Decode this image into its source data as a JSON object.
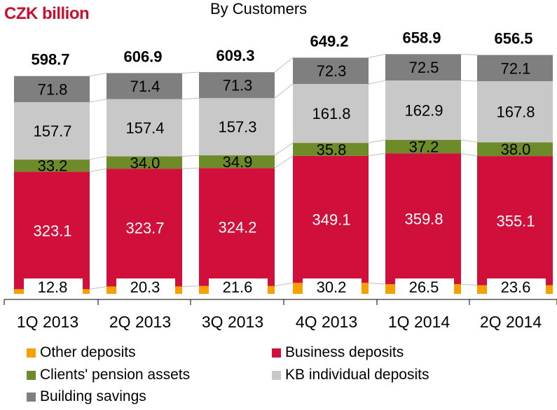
{
  "unit_label": "CZK billion",
  "title": "By Customers",
  "colors": {
    "unit_label": "#c8102e",
    "other": "#f5a000",
    "business": "#d0103a",
    "pension": "#6e8b2a",
    "kb_individual": "#c8c8c8",
    "building": "#7f7f7f",
    "connector": "#bfbfbf"
  },
  "chart_data": {
    "type": "bar",
    "stacked": true,
    "categories": [
      "1Q 2013",
      "2Q 2013",
      "3Q 2013",
      "4Q 2013",
      "1Q 2014",
      "2Q 2014"
    ],
    "series": [
      {
        "key": "other",
        "name": "Other deposits",
        "values": [
          12.8,
          20.3,
          21.6,
          30.2,
          26.5,
          23.6
        ]
      },
      {
        "key": "business",
        "name": "Business deposits",
        "values": [
          323.1,
          323.7,
          324.2,
          349.1,
          359.8,
          355.1
        ]
      },
      {
        "key": "pension",
        "name": "Clients' pension assets",
        "values": [
          33.2,
          34.0,
          34.9,
          35.8,
          37.2,
          38.0
        ]
      },
      {
        "key": "kb_individual",
        "name": "KB individual deposits",
        "values": [
          157.7,
          157.4,
          157.3,
          161.8,
          162.9,
          167.8
        ]
      },
      {
        "key": "building",
        "name": "Building savings",
        "values": [
          71.8,
          71.4,
          71.3,
          72.3,
          72.5,
          72.1
        ]
      }
    ],
    "totals": [
      "598.7",
      "606.9",
      "609.3",
      "649.2",
      "658.9",
      "656.5"
    ],
    "value_labels": {
      "other": [
        "12.8",
        "20.3",
        "21.6",
        "30.2",
        "26.5",
        "23.6"
      ],
      "business": [
        "323.1",
        "323.7",
        "324.2",
        "349.1",
        "359.8",
        "355.1"
      ],
      "pension": [
        "33.2",
        "34.0",
        "34.9",
        "35.8",
        "37.2",
        "38.0"
      ],
      "kb_individual": [
        "157.7",
        "157.4",
        "157.3",
        "161.8",
        "162.9",
        "167.8"
      ],
      "building": [
        "71.8",
        "71.4",
        "71.3",
        "72.3",
        "72.5",
        "72.1"
      ]
    },
    "legend_position": "bottom",
    "grid": false
  }
}
